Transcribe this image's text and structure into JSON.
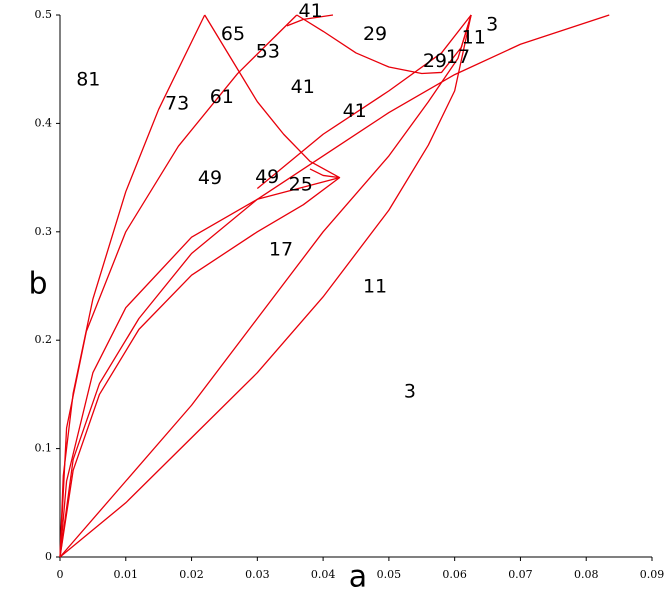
{
  "chart_data": {
    "type": "line",
    "x_label": "a",
    "y_label": "b",
    "xlim": [
      0,
      0.09
    ],
    "ylim": [
      0,
      0.5
    ],
    "xticks": [
      0,
      0.01,
      0.02,
      0.03,
      0.04,
      0.05,
      0.06,
      0.07,
      0.08,
      0.09
    ],
    "yticks": [
      0,
      0.1,
      0.2,
      0.3,
      0.4,
      0.5
    ],
    "grid": false,
    "color": "#e8000b",
    "series": [
      {
        "x": [
          0,
          0.0005,
          0.002,
          0.005,
          0.01,
          0.015,
          0.022
        ],
        "values": [
          0,
          0.075,
          0.151,
          0.238,
          0.337,
          0.413,
          0.5
        ]
      },
      {
        "x": [
          0.022,
          0.026,
          0.03,
          0.034,
          0.038,
          0.0425,
          0.04,
          0.038
        ],
        "values": [
          0.5,
          0.46,
          0.42,
          0.39,
          0.365,
          0.35,
          0.352,
          0.358
        ]
      },
      {
        "x": [
          0,
          0.001,
          0.004,
          0.01,
          0.018,
          0.027,
          0.036
        ],
        "values": [
          0,
          0.119,
          0.208,
          0.3,
          0.379,
          0.446,
          0.5
        ]
      },
      {
        "x": [
          0.036,
          0.04,
          0.045,
          0.05,
          0.055,
          0.058,
          0.061,
          0.0625
        ],
        "values": [
          0.5,
          0.485,
          0.465,
          0.452,
          0.446,
          0.447,
          0.47,
          0.5
        ]
      },
      {
        "x": [
          0.0345,
          0.037,
          0.0415
        ],
        "values": [
          0.49,
          0.496,
          0.5
        ]
      },
      {
        "x": [
          0,
          0.001,
          0.005,
          0.01,
          0.02,
          0.03,
          0.0425
        ],
        "values": [
          0,
          0.07,
          0.17,
          0.23,
          0.295,
          0.33,
          0.35
        ]
      },
      {
        "x": [
          0,
          0.002,
          0.006,
          0.012,
          0.02,
          0.03,
          0.037,
          0.0425
        ],
        "values": [
          0,
          0.08,
          0.15,
          0.21,
          0.26,
          0.3,
          0.325,
          0.35
        ]
      },
      {
        "x": [
          0,
          0.002,
          0.006,
          0.012,
          0.02,
          0.03,
          0.04,
          0.05,
          0.06,
          0.07,
          0.0835
        ],
        "values": [
          0,
          0.09,
          0.16,
          0.22,
          0.28,
          0.33,
          0.37,
          0.41,
          0.445,
          0.473,
          0.5
        ]
      },
      {
        "x": [
          0.03,
          0.04,
          0.05,
          0.058,
          0.0625
        ],
        "values": [
          0.34,
          0.39,
          0.43,
          0.465,
          0.5
        ]
      },
      {
        "x": [
          0,
          0.01,
          0.02,
          0.03,
          0.04,
          0.05,
          0.056,
          0.06,
          0.0625
        ],
        "values": [
          0,
          0.05,
          0.11,
          0.17,
          0.24,
          0.32,
          0.38,
          0.43,
          0.5
        ]
      },
      {
        "x": [
          0,
          0.01,
          0.02,
          0.03,
          0.04,
          0.05,
          0.056,
          0.0605,
          0.0625
        ],
        "values": [
          0,
          0.07,
          0.14,
          0.22,
          0.3,
          0.37,
          0.42,
          0.46,
          0.5
        ]
      }
    ],
    "annotations": [
      {
        "text": "81",
        "x": 0.0043,
        "y": 0.44
      },
      {
        "text": "65",
        "x": 0.0263,
        "y": 0.482
      },
      {
        "text": "41",
        "x": 0.0381,
        "y": 0.503
      },
      {
        "text": "53",
        "x": 0.0316,
        "y": 0.466
      },
      {
        "text": "29",
        "x": 0.0479,
        "y": 0.482
      },
      {
        "text": "11",
        "x": 0.0629,
        "y": 0.479
      },
      {
        "text": "3",
        "x": 0.0657,
        "y": 0.491
      },
      {
        "text": "29",
        "x": 0.057,
        "y": 0.457
      },
      {
        "text": "17",
        "x": 0.0605,
        "y": 0.461
      },
      {
        "text": "73",
        "x": 0.0178,
        "y": 0.418
      },
      {
        "text": "61",
        "x": 0.0246,
        "y": 0.424
      },
      {
        "text": "41",
        "x": 0.0369,
        "y": 0.433
      },
      {
        "text": "41",
        "x": 0.0448,
        "y": 0.411
      },
      {
        "text": "49",
        "x": 0.0228,
        "y": 0.349
      },
      {
        "text": "49",
        "x": 0.0315,
        "y": 0.35
      },
      {
        "text": "25",
        "x": 0.0366,
        "y": 0.343
      },
      {
        "text": "17",
        "x": 0.0336,
        "y": 0.283
      },
      {
        "text": "11",
        "x": 0.0479,
        "y": 0.249
      },
      {
        "text": "3",
        "x": 0.0532,
        "y": 0.152
      }
    ]
  }
}
